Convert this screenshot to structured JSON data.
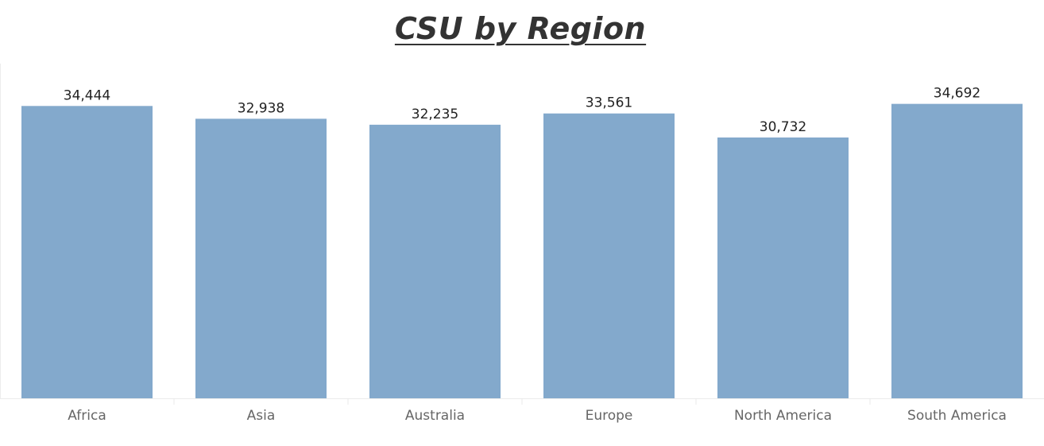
{
  "chart_data": {
    "type": "bar",
    "title": "CSU by Region",
    "xlabel": "",
    "ylabel": "",
    "categories": [
      "Africa",
      "Asia",
      "Australia",
      "Europe",
      "North America",
      "South America"
    ],
    "values": [
      34444,
      32938,
      32235,
      33561,
      30732,
      34692
    ],
    "value_labels": [
      "34,444",
      "32,938",
      "32,235",
      "33,561",
      "30,732",
      "34,692"
    ],
    "ylim": [
      0,
      38500
    ],
    "grid": false,
    "legend": "none",
    "colors": {
      "bar": "#83a9cc",
      "title": "#333333",
      "value_label": "#222222",
      "category_label": "#666666",
      "divider": "#e8e8e8"
    }
  }
}
